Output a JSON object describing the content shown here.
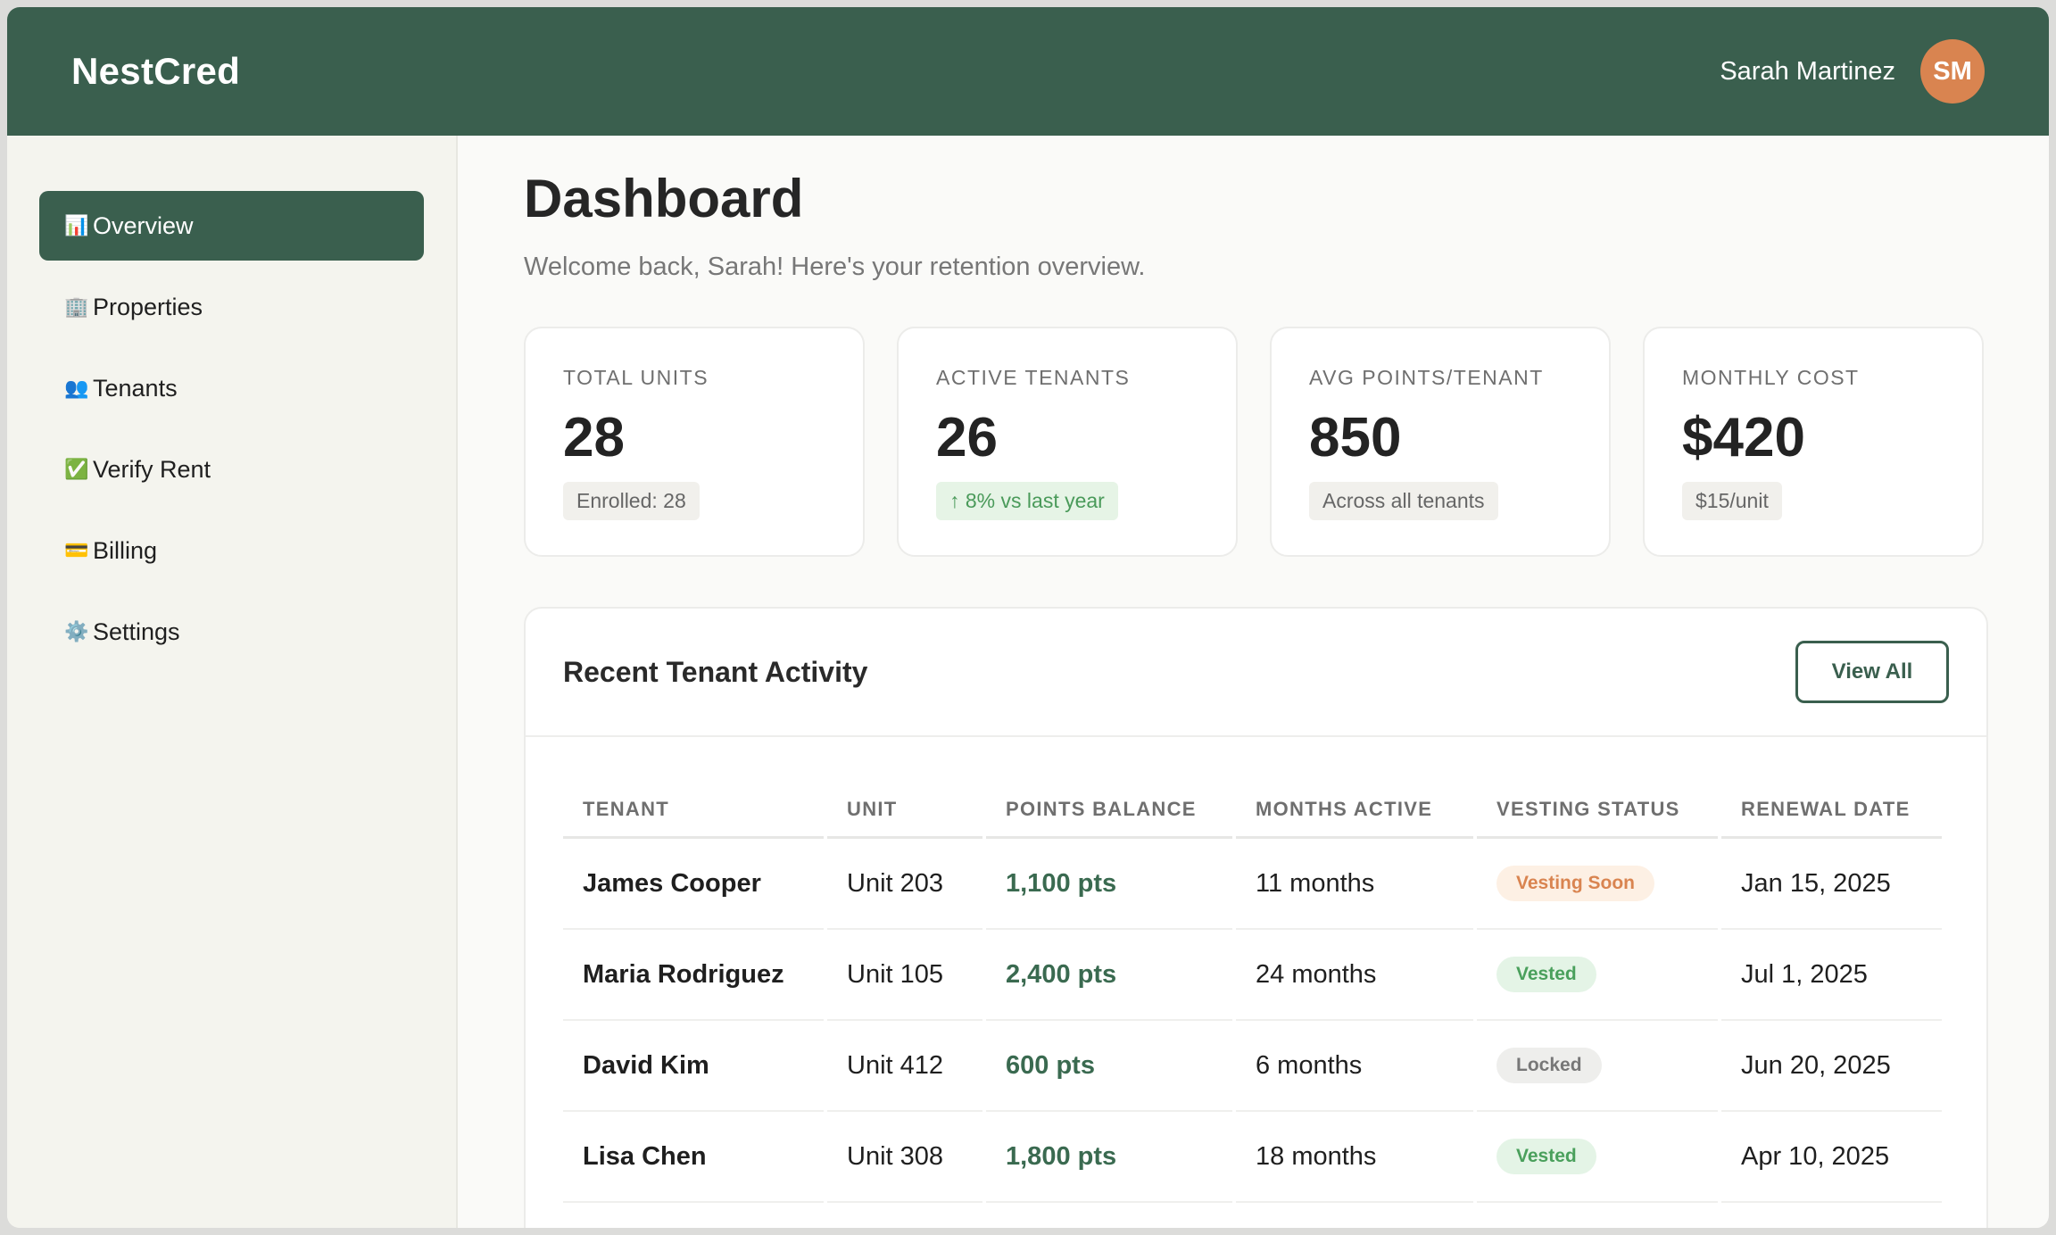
{
  "header": {
    "logo": "NestCred",
    "user_name": "Sarah Martinez",
    "avatar_initials": "SM"
  },
  "sidebar": {
    "items": [
      {
        "icon": "📊",
        "icon_name": "bar-chart-icon",
        "label": "Overview",
        "active": true
      },
      {
        "icon": "🏢",
        "icon_name": "building-icon",
        "label": "Properties",
        "active": false
      },
      {
        "icon": "👥",
        "icon_name": "people-icon",
        "label": "Tenants",
        "active": false
      },
      {
        "icon": "✅",
        "icon_name": "check-icon",
        "label": "Verify Rent",
        "active": false
      },
      {
        "icon": "💳",
        "icon_name": "credit-card-icon",
        "label": "Billing",
        "active": false
      },
      {
        "icon": "⚙️",
        "icon_name": "gear-icon",
        "label": "Settings",
        "active": false
      }
    ]
  },
  "main": {
    "title": "Dashboard",
    "subtitle": "Welcome back, Sarah! Here's your retention overview.",
    "stats": [
      {
        "label": "TOTAL UNITS",
        "value": "28",
        "chip": "Enrolled: 28",
        "chip_style": "neutral"
      },
      {
        "label": "ACTIVE TENANTS",
        "value": "26",
        "chip": "↑ 8% vs last year",
        "chip_style": "positive"
      },
      {
        "label": "AVG POINTS/TENANT",
        "value": "850",
        "chip": "Across all tenants",
        "chip_style": "neutral"
      },
      {
        "label": "MONTHLY COST",
        "value": "$420",
        "chip": "$15/unit",
        "chip_style": "neutral"
      }
    ],
    "activity": {
      "title": "Recent Tenant Activity",
      "view_all_label": "View All",
      "columns": [
        "TENANT",
        "UNIT",
        "POINTS BALANCE",
        "MONTHS ACTIVE",
        "VESTING STATUS",
        "RENEWAL DATE"
      ],
      "rows": [
        {
          "tenant": "James Cooper",
          "unit": "Unit 203",
          "points": "1,100 pts",
          "months": "11 months",
          "status": "Vesting Soon",
          "status_style": "soon",
          "renewal": "Jan 15, 2025"
        },
        {
          "tenant": "Maria Rodriguez",
          "unit": "Unit 105",
          "points": "2,400 pts",
          "months": "24 months",
          "status": "Vested",
          "status_style": "vested",
          "renewal": "Jul 1, 2025"
        },
        {
          "tenant": "David Kim",
          "unit": "Unit 412",
          "points": "600 pts",
          "months": "6 months",
          "status": "Locked",
          "status_style": "locked",
          "renewal": "Jun 20, 2025"
        },
        {
          "tenant": "Lisa Chen",
          "unit": "Unit 308",
          "points": "1,800 pts",
          "months": "18 months",
          "status": "Vested",
          "status_style": "vested",
          "renewal": "Apr 10, 2025"
        }
      ]
    }
  },
  "colors": {
    "brand": "#3a5f4e",
    "avatar": "#d98450",
    "status_soon": "#d98450",
    "status_vested": "#4aa05c",
    "status_locked": "#777777"
  }
}
